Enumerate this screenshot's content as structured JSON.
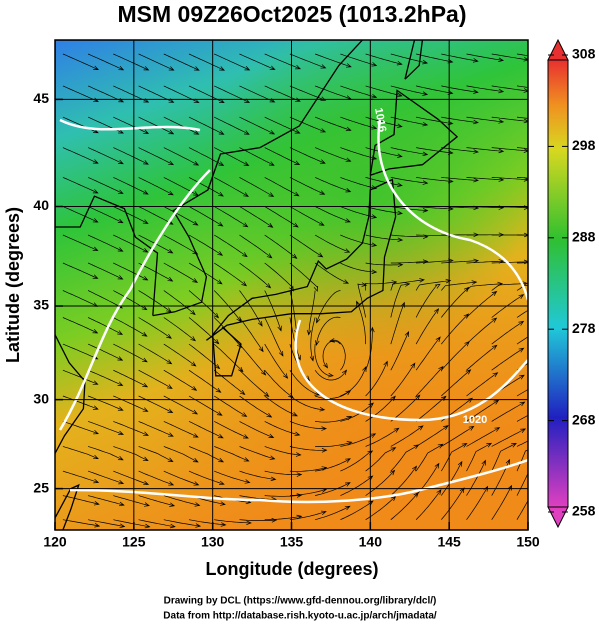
{
  "chart_data": {
    "type": "map",
    "title": "MSM 09Z26Oct2025 (1013.2hPa)",
    "x_label": "Longitude (degrees)",
    "y_label": "Latitude  (degrees)",
    "xlim": [
      120,
      150
    ],
    "xticks": [
      120,
      125,
      130,
      135,
      140,
      145,
      150
    ],
    "ylim": [
      22.6,
      47.6
    ],
    "yticks": [
      25,
      30,
      35,
      40,
      45
    ],
    "grid": true,
    "colorbar": {
      "ticks": [
        258,
        268,
        278,
        288,
        298,
        308
      ]
    },
    "annotations": [
      "1020",
      "1016"
    ],
    "credits": [
      "Drawing by DCL (https://www.gfd-dennou.org/library/dcl/)",
      "Data from http://database.rish.kyoto-u.ac.jp/arch/jmadata/"
    ]
  }
}
